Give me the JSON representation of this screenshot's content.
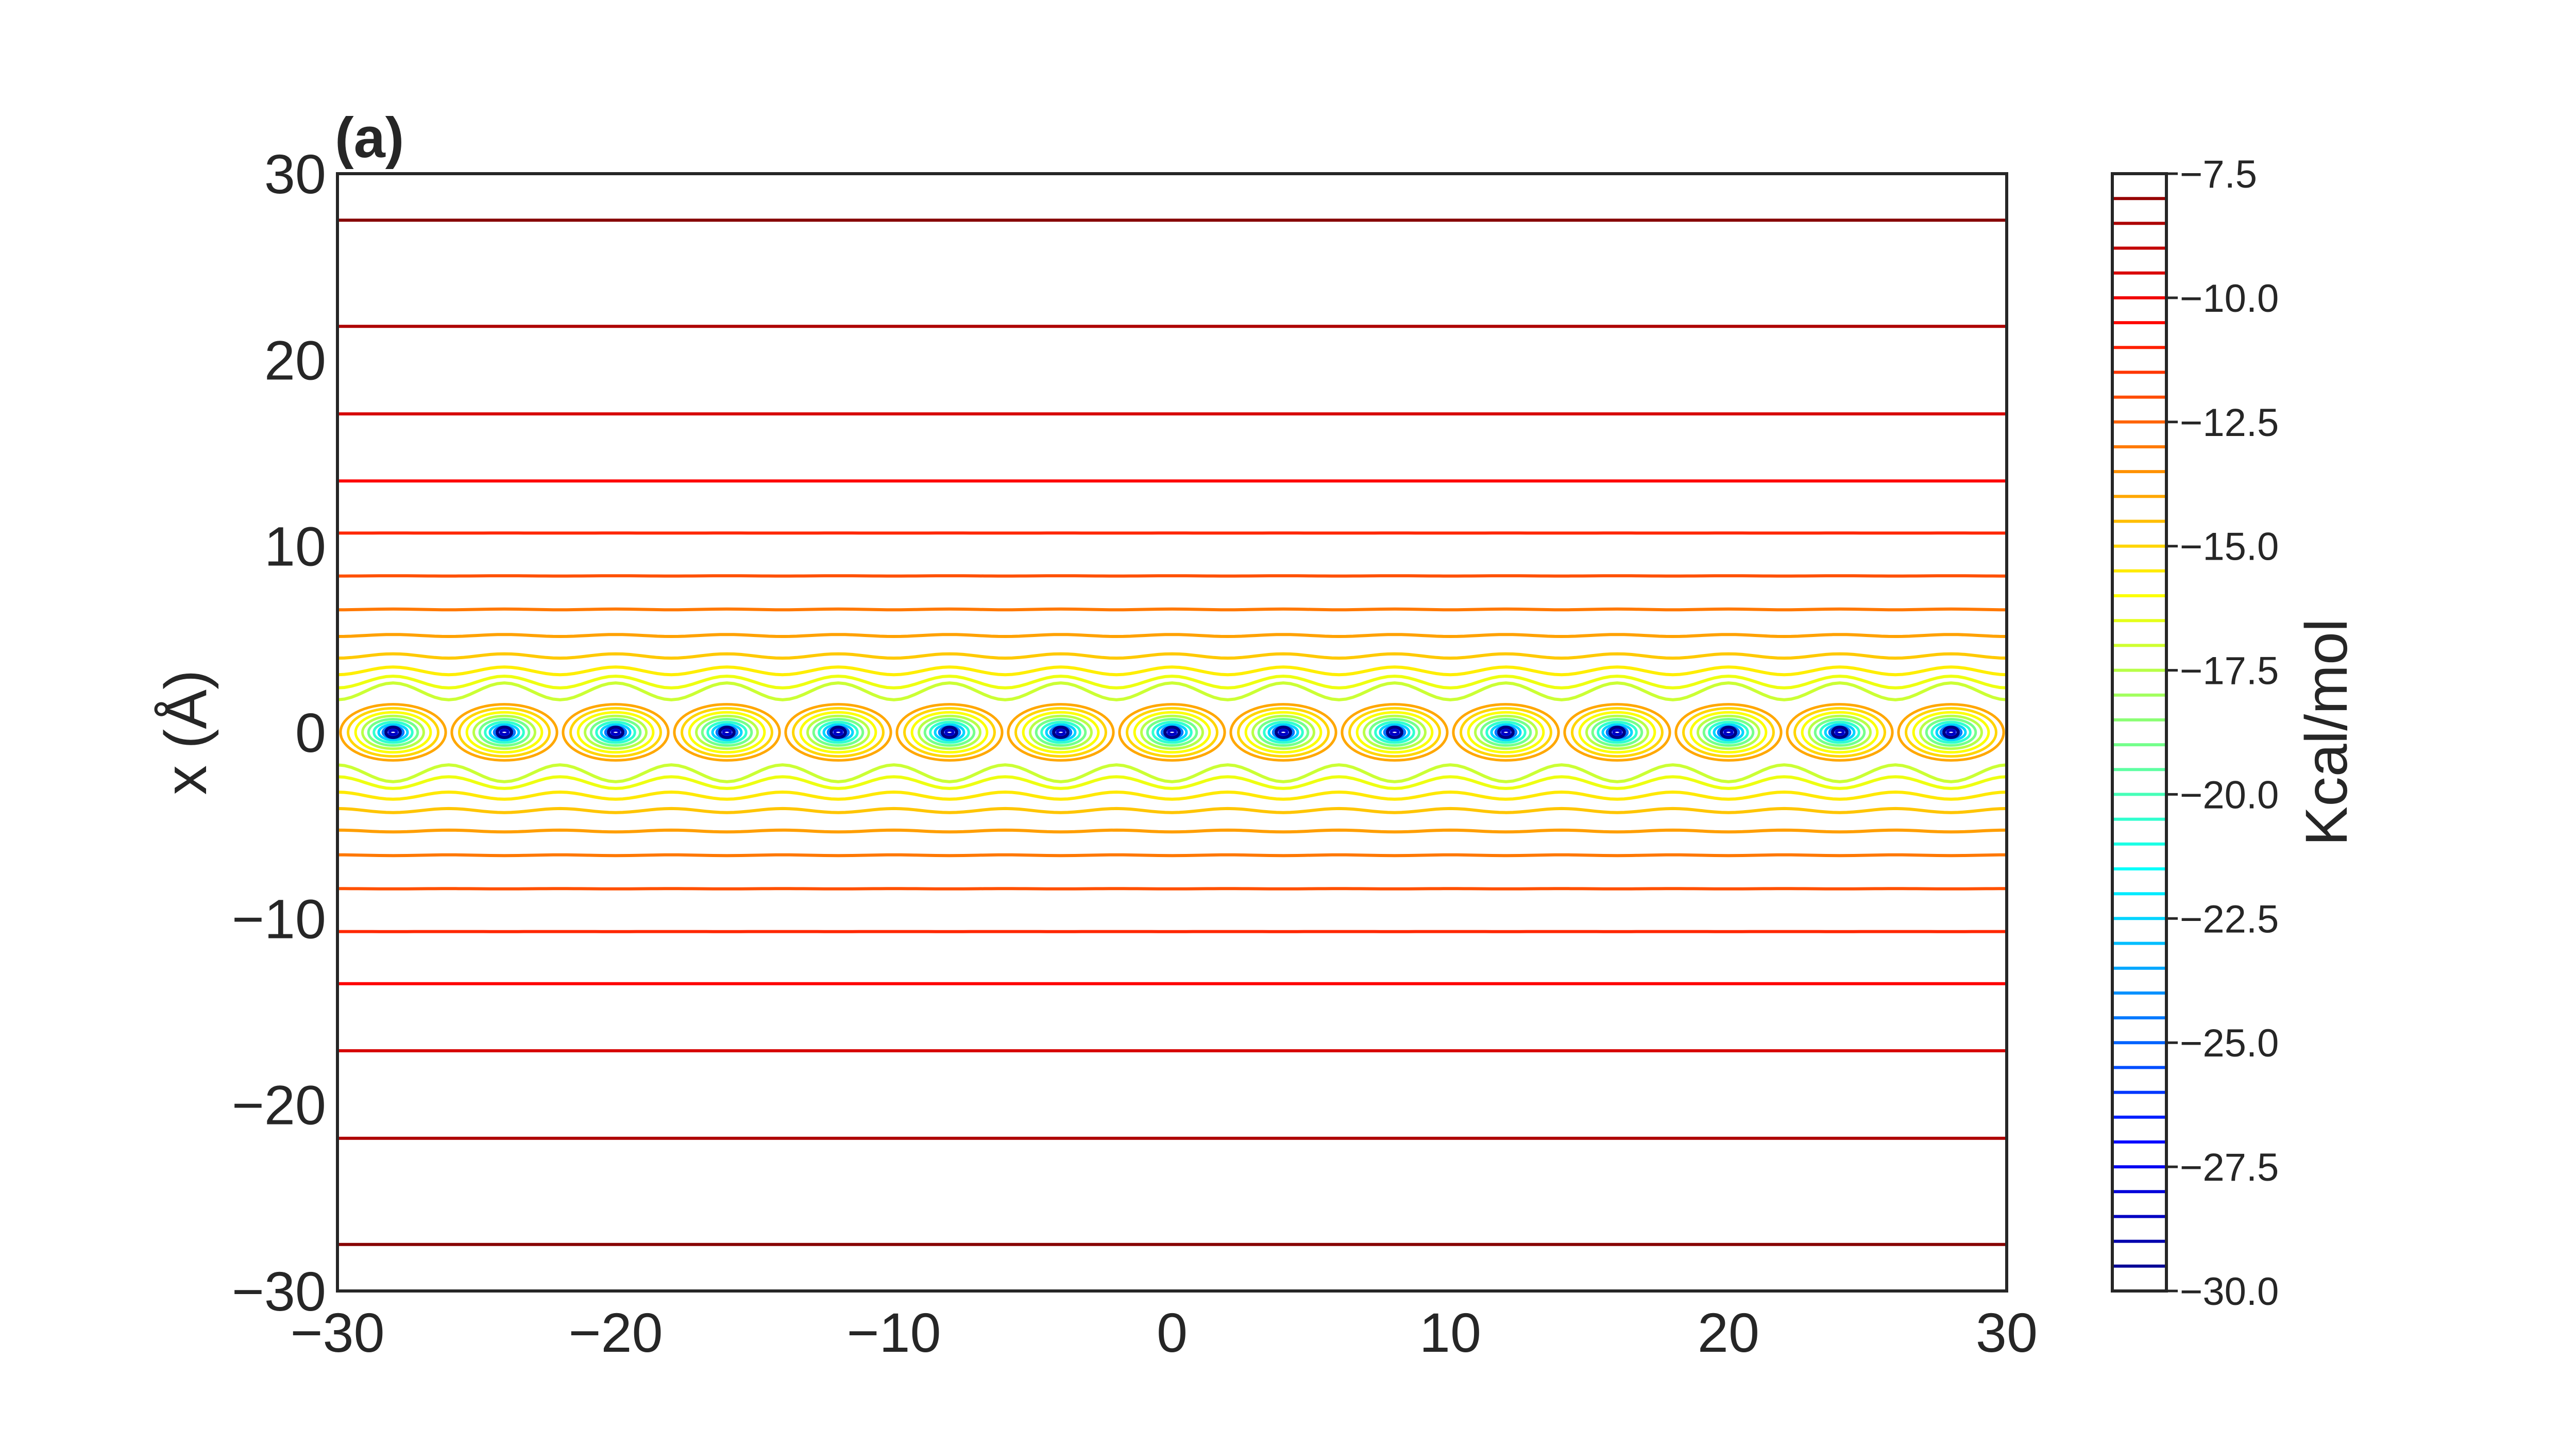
{
  "chart_data": {
    "type": "contour",
    "panel_label": "(a)",
    "xlabel": "",
    "ylabel": "x (Å)",
    "xlim": [
      -30,
      30
    ],
    "ylim": [
      -30,
      30
    ],
    "x_ticks": [
      -30,
      -20,
      -10,
      0,
      10,
      20,
      30
    ],
    "y_ticks": [
      -30,
      -20,
      -10,
      0,
      10,
      20,
      30
    ],
    "x_tick_labels": [
      "−30",
      "−20",
      "−10",
      "0",
      "10",
      "20",
      "30"
    ],
    "y_tick_labels": [
      "−30",
      "−20",
      "−10",
      "0",
      "10",
      "20",
      "30"
    ],
    "grid": false,
    "minima_x_positions": [
      -28,
      -24,
      -20,
      -16,
      -12,
      -8,
      -4,
      0,
      4,
      8,
      12,
      16,
      20,
      24,
      28
    ],
    "minima_y": 0,
    "contour_lines_y_positive": [
      27.5,
      21.8,
      17.1,
      13.5,
      10.7,
      8.4,
      6.6,
      5.2,
      4.1,
      3.3,
      2.7,
      2.2
    ],
    "contour_lines_y_negative": [
      -27.5,
      -21.8,
      -17.1,
      -13.5,
      -10.7,
      -8.4,
      -6.6,
      -5.3,
      -4.2,
      -3.4,
      -2.7,
      -2.2
    ],
    "colorbar": {
      "label": "Kcal/mol",
      "min": -30.0,
      "max": -7.5,
      "level_step": 0.5,
      "ticks": [
        -30.0,
        -27.5,
        -25.0,
        -22.5,
        -20.0,
        -17.5,
        -15.0,
        -12.5,
        -10.0,
        -7.5
      ],
      "tick_labels": [
        "−30.0",
        "−27.5",
        "−25.0",
        "−22.5",
        "−20.0",
        "−17.5",
        "−15.0",
        "−12.5",
        "−10.0",
        "−7.5"
      ],
      "colormap": "jet",
      "orientation": "vertical",
      "placement": "right"
    }
  }
}
